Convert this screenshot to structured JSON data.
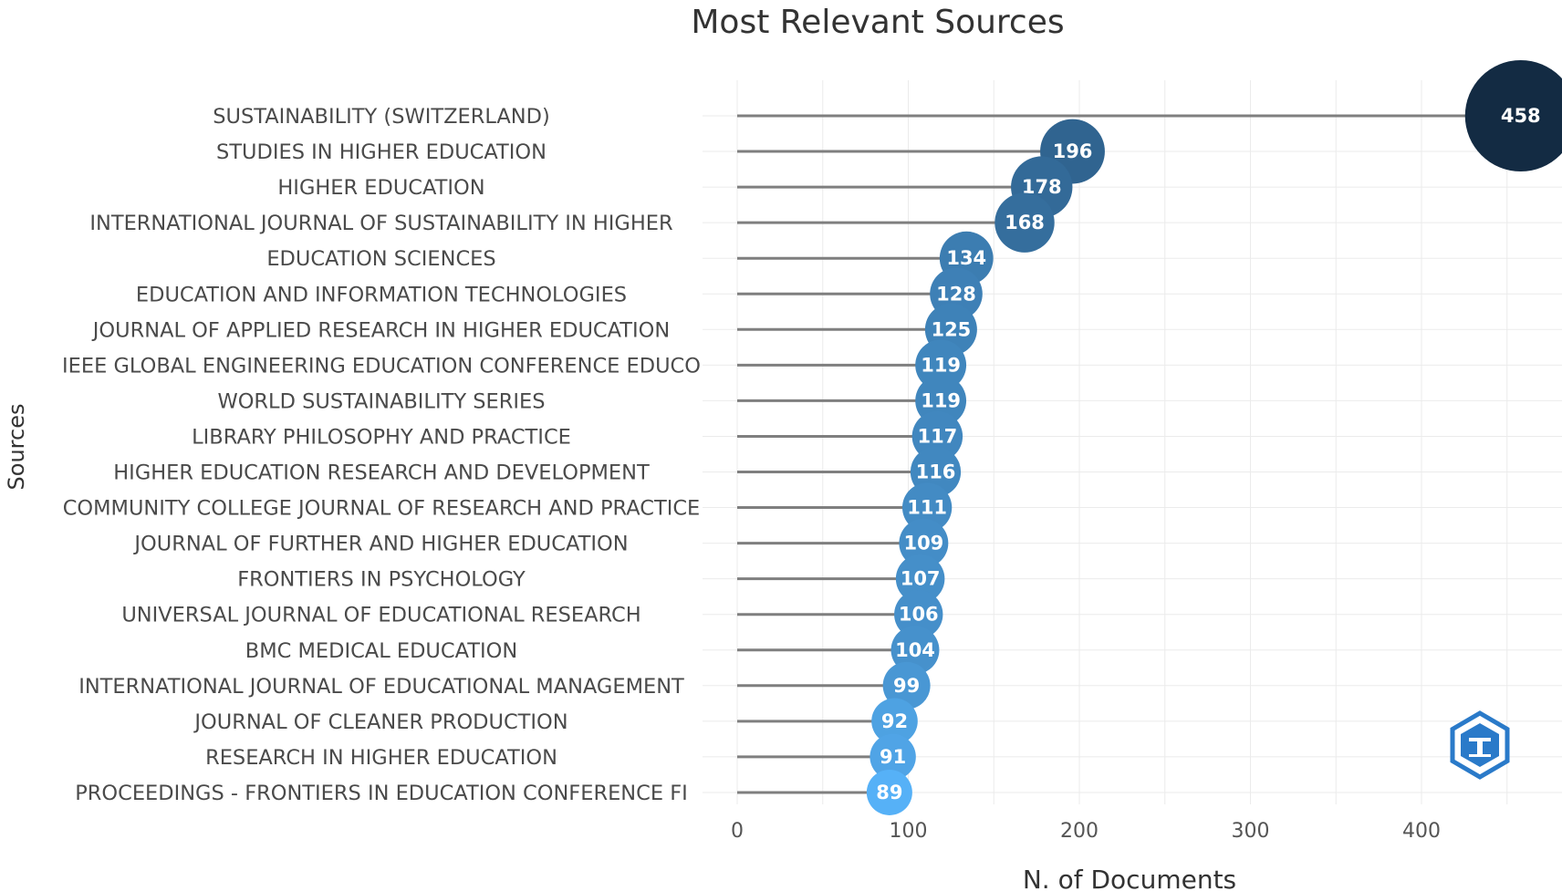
{
  "chart_data": {
    "type": "scatter",
    "title": "Most Relevant Sources",
    "xlabel": "N. of Documents",
    "ylabel": "Sources",
    "xlim": [
      0,
      480
    ],
    "xticks": [
      0,
      100,
      200,
      300,
      400
    ],
    "grid": true,
    "legend": "none",
    "categories": [
      "SUSTAINABILITY (SWITZERLAND)",
      "STUDIES IN HIGHER EDUCATION",
      "HIGHER EDUCATION",
      "INTERNATIONAL JOURNAL OF SUSTAINABILITY IN HIGHER",
      "EDUCATION SCIENCES",
      "EDUCATION AND INFORMATION TECHNOLOGIES",
      "JOURNAL OF APPLIED RESEARCH IN HIGHER EDUCATION",
      "IEEE GLOBAL ENGINEERING EDUCATION CONFERENCE EDUCO",
      "WORLD SUSTAINABILITY SERIES",
      "LIBRARY PHILOSOPHY AND PRACTICE",
      "HIGHER EDUCATION RESEARCH AND DEVELOPMENT",
      "COMMUNITY COLLEGE JOURNAL OF RESEARCH AND PRACTICE",
      "JOURNAL OF FURTHER AND HIGHER EDUCATION",
      "FRONTIERS IN PSYCHOLOGY",
      "UNIVERSAL JOURNAL OF EDUCATIONAL RESEARCH",
      "BMC MEDICAL EDUCATION",
      "INTERNATIONAL JOURNAL OF EDUCATIONAL MANAGEMENT",
      "JOURNAL OF CLEANER PRODUCTION",
      "RESEARCH IN HIGHER EDUCATION",
      "PROCEEDINGS - FRONTIERS IN EDUCATION CONFERENCE FI"
    ],
    "values": [
      458,
      196,
      178,
      168,
      134,
      128,
      125,
      119,
      119,
      117,
      116,
      111,
      109,
      107,
      106,
      104,
      99,
      92,
      91,
      89
    ],
    "color_scale": [
      "#132b43",
      "#56b1f7"
    ]
  },
  "logo": {
    "icon": "bibliometrix-hexagon-icon",
    "color": "#2a7ac9"
  }
}
